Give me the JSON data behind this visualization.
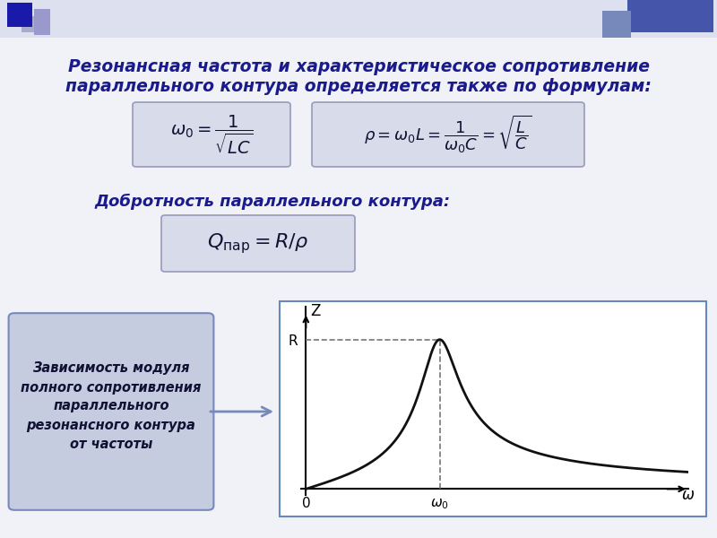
{
  "bg_color": "#f0f2f8",
  "title_text1": "Резонансная частота и характеристическое сопротивление",
  "title_text2": "параллельного контура определяется также по формулам:",
  "title_color": "#1a1a8c",
  "formula1": "$\\omega_0 = \\dfrac{1}{\\sqrt{LC}}$",
  "formula2": "$\\rho = \\omega_0 L = \\dfrac{1}{\\omega_0 C} = \\sqrt{\\dfrac{L}{C}}$",
  "quality_label": "Добротность параллельного контура:",
  "quality_formula": "$Q_{\\mathregular{пар}} = R/\\rho$",
  "box_text": "Зависимость модуля\nполного сопротивления\nпараллельного\nрезонансного контура\nот частоты",
  "formula_box_color": "#d8dcea",
  "formula_border_color": "#9999bb",
  "plot_bg": "#ffffff",
  "curve_color": "#111111",
  "dashed_color": "#777777",
  "label_color": "#1a1a8c",
  "arrow_box_bg": "#c5cce0",
  "arrow_box_border": "#7788bb",
  "plot_border_color": "#6688bb",
  "header_bar_color": "#4455aa",
  "top_left_sq1": "#1a1aaa",
  "top_left_sq2": "#8888cc"
}
